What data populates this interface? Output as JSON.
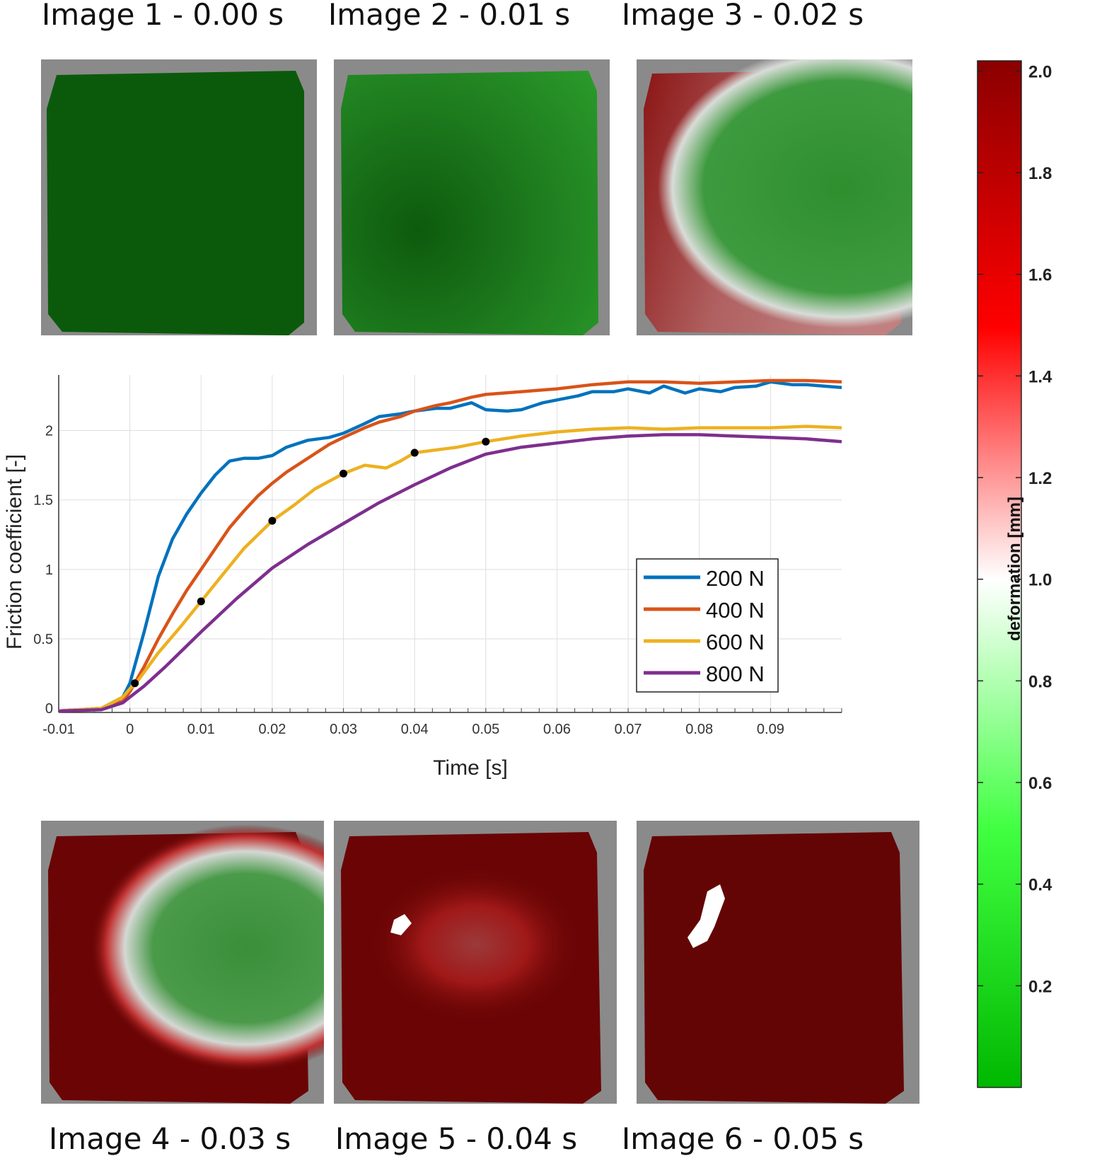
{
  "images": [
    {
      "label": "Image 1 - 0.00 s",
      "state": "green"
    },
    {
      "label": "Image 2 - 0.01 s",
      "state": "green-shaded"
    },
    {
      "label": "Image 3 - 0.02 s",
      "state": "red-left-green-right"
    },
    {
      "label": "Image 4 - 0.03 s",
      "state": "green-center"
    },
    {
      "label": "Image 5 - 0.04 s",
      "state": "red-light-center"
    },
    {
      "label": "Image 6 - 0.05 s",
      "state": "red"
    }
  ],
  "colorbar": {
    "label": "deformation [mm]",
    "ticks": [
      "0.2",
      "0.4",
      "0.6",
      "0.8",
      "1.0",
      "1.2",
      "1.4",
      "1.6",
      "1.8",
      "2.0"
    ],
    "min": 0.0,
    "max": 2.02,
    "colors": {
      "low": "#00b800",
      "mid": "#ffffff",
      "high": "#8b0000"
    }
  },
  "chart_data": {
    "type": "line",
    "xlabel": "Time [s]",
    "ylabel": "Friction coefficient [-]",
    "xlim": [
      -0.01,
      0.1
    ],
    "ylim": [
      -0.03,
      2.4
    ],
    "xticks": [
      "-0.01",
      "0",
      "0.01",
      "0.02",
      "0.03",
      "0.04",
      "0.05",
      "0.06",
      "0.07",
      "0.08",
      "0.09"
    ],
    "yticks": [
      "0",
      "0.5",
      "1",
      "1.5",
      "2"
    ],
    "grid": true,
    "legend_position": "center-right",
    "series": [
      {
        "name": "200 N",
        "color": "#0072BD",
        "x": [
          -0.01,
          -0.004,
          -0.001,
          0.0,
          0.002,
          0.004,
          0.006,
          0.008,
          0.01,
          0.012,
          0.014,
          0.016,
          0.018,
          0.02,
          0.022,
          0.025,
          0.028,
          0.03,
          0.033,
          0.035,
          0.038,
          0.04,
          0.043,
          0.045,
          0.048,
          0.05,
          0.053,
          0.055,
          0.058,
          0.06,
          0.063,
          0.065,
          0.068,
          0.07,
          0.073,
          0.075,
          0.078,
          0.08,
          0.083,
          0.085,
          0.088,
          0.09,
          0.093,
          0.095,
          0.1
        ],
        "y": [
          -0.02,
          0.0,
          0.08,
          0.18,
          0.55,
          0.95,
          1.22,
          1.4,
          1.55,
          1.68,
          1.78,
          1.8,
          1.8,
          1.82,
          1.88,
          1.93,
          1.95,
          1.98,
          2.05,
          2.1,
          2.12,
          2.14,
          2.16,
          2.16,
          2.2,
          2.15,
          2.14,
          2.15,
          2.2,
          2.22,
          2.25,
          2.28,
          2.28,
          2.3,
          2.27,
          2.32,
          2.27,
          2.3,
          2.28,
          2.31,
          2.32,
          2.35,
          2.33,
          2.33,
          2.31
        ]
      },
      {
        "name": "400 N",
        "color": "#D95319",
        "x": [
          -0.01,
          -0.004,
          -0.001,
          0.0,
          0.002,
          0.004,
          0.006,
          0.008,
          0.01,
          0.012,
          0.014,
          0.016,
          0.018,
          0.02,
          0.022,
          0.025,
          0.028,
          0.03,
          0.033,
          0.035,
          0.038,
          0.04,
          0.043,
          0.045,
          0.048,
          0.05,
          0.055,
          0.06,
          0.065,
          0.07,
          0.075,
          0.08,
          0.085,
          0.09,
          0.095,
          0.1
        ],
        "y": [
          -0.02,
          0.0,
          0.05,
          0.12,
          0.3,
          0.5,
          0.68,
          0.85,
          1.0,
          1.15,
          1.3,
          1.42,
          1.53,
          1.62,
          1.7,
          1.8,
          1.9,
          1.95,
          2.02,
          2.06,
          2.1,
          2.14,
          2.18,
          2.2,
          2.24,
          2.26,
          2.28,
          2.3,
          2.33,
          2.35,
          2.35,
          2.34,
          2.35,
          2.36,
          2.36,
          2.35
        ]
      },
      {
        "name": "600 N",
        "color": "#EDB120",
        "x": [
          -0.01,
          -0.004,
          -0.001,
          0.0,
          0.001,
          0.004,
          0.007,
          0.01,
          0.013,
          0.016,
          0.02,
          0.023,
          0.026,
          0.03,
          0.033,
          0.036,
          0.038,
          0.04,
          0.043,
          0.046,
          0.05,
          0.055,
          0.06,
          0.065,
          0.07,
          0.075,
          0.08,
          0.085,
          0.09,
          0.095,
          0.1
        ],
        "y": [
          -0.02,
          0.0,
          0.08,
          0.14,
          0.19,
          0.4,
          0.58,
          0.77,
          0.96,
          1.15,
          1.35,
          1.46,
          1.58,
          1.69,
          1.75,
          1.73,
          1.78,
          1.84,
          1.86,
          1.88,
          1.92,
          1.96,
          1.99,
          2.01,
          2.02,
          2.01,
          2.02,
          2.02,
          2.02,
          2.03,
          2.02
        ]
      },
      {
        "name": "800 N",
        "color": "#7E2F8E",
        "x": [
          -0.01,
          -0.004,
          -0.001,
          0.0,
          0.002,
          0.005,
          0.01,
          0.015,
          0.02,
          0.025,
          0.03,
          0.035,
          0.04,
          0.045,
          0.05,
          0.055,
          0.06,
          0.065,
          0.07,
          0.075,
          0.08,
          0.085,
          0.09,
          0.095,
          0.1
        ],
        "y": [
          -0.02,
          -0.01,
          0.04,
          0.08,
          0.16,
          0.3,
          0.55,
          0.79,
          1.01,
          1.18,
          1.33,
          1.48,
          1.61,
          1.73,
          1.83,
          1.88,
          1.91,
          1.94,
          1.96,
          1.97,
          1.97,
          1.96,
          1.95,
          1.94,
          1.92
        ]
      }
    ],
    "markers": {
      "series": "600 N",
      "x": [
        0.0007,
        0.01,
        0.02,
        0.03,
        0.04,
        0.05
      ],
      "y": [
        0.18,
        0.77,
        1.35,
        1.69,
        1.84,
        1.92
      ]
    }
  }
}
